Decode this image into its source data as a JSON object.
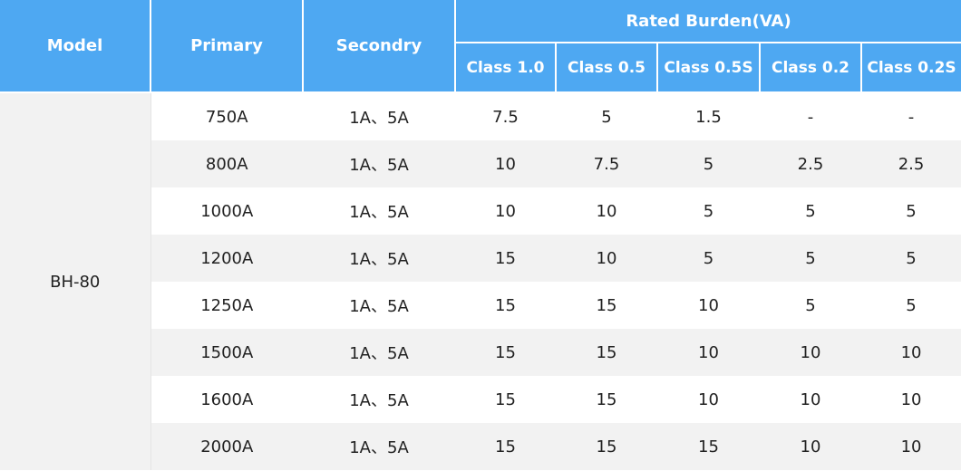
{
  "header": {
    "model": "Model",
    "primary": "Primary",
    "secondary": "Secondry",
    "rated_burden": "Rated Burden(VA)",
    "classes": [
      "Class 1.0",
      "Class 0.5",
      "Class 0.5S",
      "Class 0.2",
      "Class 0.2S"
    ]
  },
  "table": {
    "model": "BH-80",
    "rows": [
      [
        "750A",
        "1A、5A",
        "7.5",
        "5",
        "1.5",
        "-",
        "-"
      ],
      [
        "800A",
        "1A、5A",
        "10",
        "7.5",
        "5",
        "2.5",
        "2.5"
      ],
      [
        "1000A",
        "1A、5A",
        "10",
        "10",
        "5",
        "5",
        "5"
      ],
      [
        "1200A",
        "1A、5A",
        "15",
        "10",
        "5",
        "5",
        "5"
      ],
      [
        "1250A",
        "1A、5A",
        "15",
        "15",
        "10",
        "5",
        "5"
      ],
      [
        "1500A",
        "1A、5A",
        "15",
        "15",
        "10",
        "10",
        "10"
      ],
      [
        "1600A",
        "1A、5A",
        "15",
        "15",
        "10",
        "10",
        "10"
      ],
      [
        "2000A",
        "1A、5A",
        "15",
        "15",
        "15",
        "10",
        "10"
      ]
    ]
  }
}
